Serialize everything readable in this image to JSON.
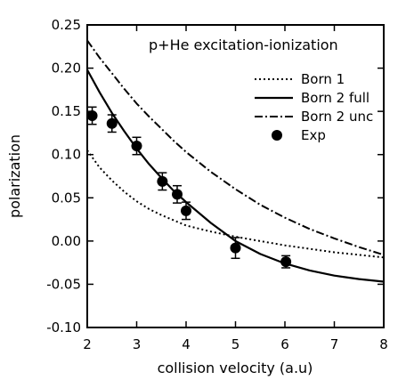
{
  "chart_data": {
    "type": "line",
    "annotation": "p+He excitation-ionization",
    "xlabel": "collision velocity (a.u)",
    "ylabel": "polarization",
    "xlim": [
      2,
      8
    ],
    "ylim": [
      -0.1,
      0.25
    ],
    "xticks": [
      2,
      3,
      4,
      5,
      6,
      7,
      8
    ],
    "xtick_labels": [
      "2",
      "3",
      "4",
      "5",
      "6",
      "7",
      "8"
    ],
    "yticks": [
      -0.1,
      -0.05,
      0.0,
      0.05,
      0.1,
      0.15,
      0.2,
      0.25
    ],
    "ytick_labels": [
      "-0.10",
      "-0.05",
      "0.00",
      "0.05",
      "0.10",
      "0.15",
      "0.20",
      "0.25"
    ],
    "grid": false,
    "legend_position": "top-right",
    "series": [
      {
        "name": "Born 1",
        "style": "dotted",
        "x": [
          2.0,
          2.25,
          2.5,
          2.75,
          3.0,
          3.25,
          3.5,
          3.75,
          4.0,
          4.5,
          5.0,
          5.5,
          6.0,
          6.5,
          7.0,
          7.5,
          8.0
        ],
        "y": [
          0.105,
          0.085,
          0.07,
          0.057,
          0.046,
          0.037,
          0.03,
          0.024,
          0.018,
          0.011,
          0.005,
          0.0,
          -0.005,
          -0.009,
          -0.013,
          -0.016,
          -0.019
        ]
      },
      {
        "name": "Born 2 full",
        "style": "solid",
        "x": [
          2.0,
          2.25,
          2.5,
          2.75,
          3.0,
          3.25,
          3.5,
          3.75,
          4.0,
          4.5,
          5.0,
          5.5,
          6.0,
          6.5,
          7.0,
          7.5,
          8.0
        ],
        "y": [
          0.198,
          0.172,
          0.148,
          0.127,
          0.107,
          0.089,
          0.073,
          0.058,
          0.045,
          0.021,
          0.0,
          -0.015,
          -0.026,
          -0.034,
          -0.04,
          -0.044,
          -0.047
        ]
      },
      {
        "name": "Born 2 unc",
        "style": "dashdot",
        "x": [
          2.0,
          2.25,
          2.5,
          2.75,
          3.0,
          3.25,
          3.5,
          3.75,
          4.0,
          4.5,
          5.0,
          5.5,
          6.0,
          6.5,
          7.0,
          7.5,
          8.0
        ],
        "y": [
          0.232,
          0.212,
          0.194,
          0.176,
          0.159,
          0.144,
          0.13,
          0.116,
          0.103,
          0.08,
          0.06,
          0.042,
          0.027,
          0.014,
          0.003,
          -0.007,
          -0.016
        ]
      },
      {
        "name": "Exp",
        "style": "markers",
        "x": [
          2.1,
          2.5,
          3.0,
          3.52,
          3.82,
          4.0,
          5.0,
          6.02
        ],
        "y": [
          0.145,
          0.136,
          0.11,
          0.069,
          0.054,
          0.035,
          -0.008,
          -0.024
        ],
        "yerr": [
          0.01,
          0.01,
          0.01,
          0.01,
          0.01,
          0.01,
          0.012,
          0.007
        ]
      }
    ]
  }
}
